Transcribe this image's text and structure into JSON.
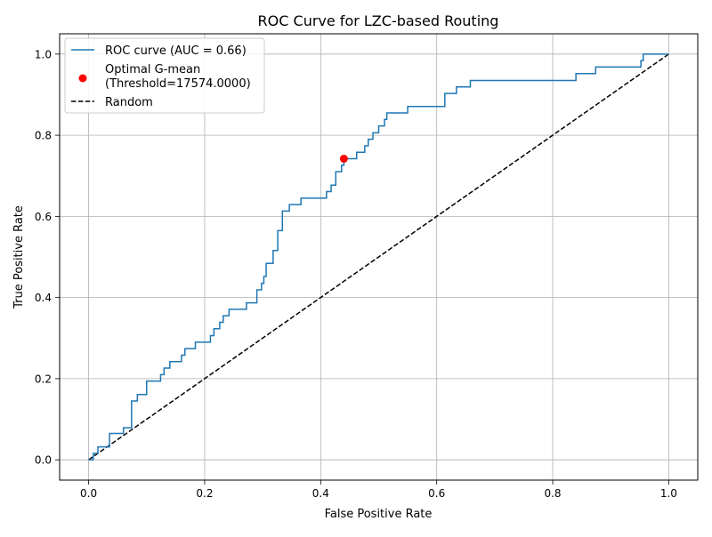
{
  "chart_data": {
    "type": "line",
    "title": "ROC Curve for LZC-based Routing",
    "xlabel": "False Positive Rate",
    "ylabel": "True Positive Rate",
    "xlim": [
      -0.05,
      1.05
    ],
    "ylim": [
      -0.05,
      1.05
    ],
    "xticks": [
      0.0,
      0.2,
      0.4,
      0.6,
      0.8,
      1.0
    ],
    "yticks": [
      0.0,
      0.2,
      0.4,
      0.6,
      0.8,
      1.0
    ],
    "xtick_labels": [
      "0.0",
      "0.2",
      "0.4",
      "0.6",
      "0.8",
      "1.0"
    ],
    "ytick_labels": [
      "0.0",
      "0.2",
      "0.4",
      "0.6",
      "0.8",
      "1.0"
    ],
    "grid": true,
    "legend_position": "upper-left",
    "series": [
      {
        "name": "ROC curve (AUC = 0.66)",
        "style": "solid",
        "color": "#1f77b4",
        "points": [
          [
            0.0,
            0.0
          ],
          [
            0.008,
            0.0
          ],
          [
            0.008,
            0.016
          ],
          [
            0.016,
            0.016
          ],
          [
            0.016,
            0.032
          ],
          [
            0.036,
            0.032
          ],
          [
            0.036,
            0.065
          ],
          [
            0.06,
            0.065
          ],
          [
            0.06,
            0.079
          ],
          [
            0.074,
            0.079
          ],
          [
            0.074,
            0.145
          ],
          [
            0.084,
            0.145
          ],
          [
            0.084,
            0.161
          ],
          [
            0.1,
            0.161
          ],
          [
            0.1,
            0.194
          ],
          [
            0.124,
            0.194
          ],
          [
            0.124,
            0.21
          ],
          [
            0.13,
            0.21
          ],
          [
            0.13,
            0.226
          ],
          [
            0.14,
            0.226
          ],
          [
            0.14,
            0.242
          ],
          [
            0.16,
            0.242
          ],
          [
            0.16,
            0.258
          ],
          [
            0.166,
            0.258
          ],
          [
            0.166,
            0.274
          ],
          [
            0.184,
            0.274
          ],
          [
            0.184,
            0.29
          ],
          [
            0.21,
            0.29
          ],
          [
            0.21,
            0.306
          ],
          [
            0.216,
            0.306
          ],
          [
            0.216,
            0.323
          ],
          [
            0.226,
            0.323
          ],
          [
            0.226,
            0.339
          ],
          [
            0.232,
            0.339
          ],
          [
            0.232,
            0.355
          ],
          [
            0.242,
            0.355
          ],
          [
            0.242,
            0.371
          ],
          [
            0.272,
            0.371
          ],
          [
            0.272,
            0.387
          ],
          [
            0.29,
            0.387
          ],
          [
            0.29,
            0.419
          ],
          [
            0.298,
            0.419
          ],
          [
            0.298,
            0.435
          ],
          [
            0.302,
            0.435
          ],
          [
            0.302,
            0.452
          ],
          [
            0.306,
            0.452
          ],
          [
            0.306,
            0.484
          ],
          [
            0.318,
            0.484
          ],
          [
            0.318,
            0.516
          ],
          [
            0.326,
            0.516
          ],
          [
            0.326,
            0.565
          ],
          [
            0.334,
            0.565
          ],
          [
            0.334,
            0.613
          ],
          [
            0.346,
            0.613
          ],
          [
            0.346,
            0.629
          ],
          [
            0.366,
            0.629
          ],
          [
            0.366,
            0.645
          ],
          [
            0.41,
            0.645
          ],
          [
            0.41,
            0.661
          ],
          [
            0.418,
            0.661
          ],
          [
            0.418,
            0.677
          ],
          [
            0.426,
            0.677
          ],
          [
            0.426,
            0.71
          ],
          [
            0.436,
            0.71
          ],
          [
            0.436,
            0.726
          ],
          [
            0.44,
            0.726
          ],
          [
            0.44,
            0.742
          ],
          [
            0.462,
            0.742
          ],
          [
            0.462,
            0.758
          ],
          [
            0.476,
            0.758
          ],
          [
            0.476,
            0.774
          ],
          [
            0.482,
            0.774
          ],
          [
            0.482,
            0.79
          ],
          [
            0.49,
            0.79
          ],
          [
            0.49,
            0.806
          ],
          [
            0.5,
            0.806
          ],
          [
            0.5,
            0.823
          ],
          [
            0.51,
            0.823
          ],
          [
            0.51,
            0.839
          ],
          [
            0.514,
            0.839
          ],
          [
            0.514,
            0.855
          ],
          [
            0.55,
            0.855
          ],
          [
            0.55,
            0.871
          ],
          [
            0.614,
            0.871
          ],
          [
            0.614,
            0.903
          ],
          [
            0.634,
            0.903
          ],
          [
            0.634,
            0.919
          ],
          [
            0.658,
            0.919
          ],
          [
            0.658,
            0.935
          ],
          [
            0.84,
            0.935
          ],
          [
            0.84,
            0.952
          ],
          [
            0.874,
            0.952
          ],
          [
            0.874,
            0.968
          ],
          [
            0.952,
            0.968
          ],
          [
            0.952,
            0.984
          ],
          [
            0.956,
            0.984
          ],
          [
            0.956,
            1.0
          ],
          [
            1.0,
            1.0
          ]
        ]
      },
      {
        "name": "Random",
        "style": "dashed",
        "color": "#000000",
        "points": [
          [
            0.0,
            0.0
          ],
          [
            1.0,
            1.0
          ]
        ]
      }
    ],
    "markers": [
      {
        "name_line1": "Optimal G-mean",
        "name_line2": "(Threshold=17574.0000)",
        "color": "#ff0000",
        "x": 0.44,
        "y": 0.742
      }
    ]
  }
}
